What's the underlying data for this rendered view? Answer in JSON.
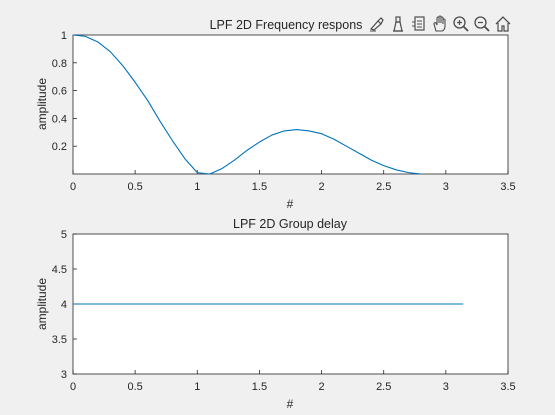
{
  "colors": {
    "figure_bg": "#f0f0f0",
    "axes_bg": "#ffffff",
    "axes_edge": "#262626",
    "line": "#0072bd",
    "toolbar_icon": "#4d4d4d"
  },
  "toolbar": {
    "icons": [
      "brush-icon",
      "data-tips-icon",
      "export-icon",
      "pan-hand-icon",
      "zoom-in-icon",
      "zoom-out-icon",
      "home-icon"
    ]
  },
  "chart_data": [
    {
      "type": "line",
      "title": "LPF 2D Frequency respons",
      "xlabel": "#",
      "ylabel": "amplitude",
      "xlim": [
        0,
        3.5
      ],
      "ylim": [
        0,
        1
      ],
      "xticks": [
        0,
        0.5,
        1,
        1.5,
        2,
        2.5,
        3,
        3.5
      ],
      "xtick_labels": [
        "0",
        "0.5",
        "1",
        "1.5",
        "2",
        "2.5",
        "3",
        "3.5"
      ],
      "yticks": [
        0.2,
        0.4,
        0.6,
        0.8,
        1
      ],
      "ytick_labels": [
        "0.2",
        "0.4",
        "0.6",
        "0.8",
        "1"
      ],
      "grid": false,
      "series": [
        {
          "x": [
            0,
            0.1,
            0.2,
            0.3,
            0.4,
            0.5,
            0.6,
            0.7,
            0.8,
            0.9,
            1.0,
            1.1,
            1.2,
            1.3,
            1.4,
            1.5,
            1.6,
            1.7,
            1.8,
            1.9,
            2.0,
            2.1,
            2.2,
            2.3,
            2.4,
            2.5,
            2.6,
            2.7,
            2.8
          ],
          "y": [
            1.0,
            0.99,
            0.95,
            0.88,
            0.78,
            0.66,
            0.53,
            0.38,
            0.24,
            0.11,
            0.01,
            0.0,
            0.04,
            0.1,
            0.17,
            0.23,
            0.28,
            0.31,
            0.32,
            0.31,
            0.29,
            0.25,
            0.2,
            0.15,
            0.1,
            0.06,
            0.03,
            0.01,
            0.0
          ]
        }
      ]
    },
    {
      "type": "line",
      "title": "LPF 2D Group delay",
      "xlabel": "#",
      "ylabel": "amplitude",
      "xlim": [
        0,
        3.5
      ],
      "ylim": [
        3,
        5
      ],
      "xticks": [
        0,
        0.5,
        1,
        1.5,
        2,
        2.5,
        3,
        3.5
      ],
      "xtick_labels": [
        "0",
        "0.5",
        "1",
        "1.5",
        "2",
        "2.5",
        "3",
        "3.5"
      ],
      "yticks": [
        3,
        3.5,
        4,
        4.5,
        5
      ],
      "ytick_labels": [
        "3",
        "3.5",
        "4",
        "4.5",
        "5"
      ],
      "grid": false,
      "series": [
        {
          "x": [
            0,
            3.14
          ],
          "y": [
            4,
            4
          ]
        }
      ]
    }
  ]
}
